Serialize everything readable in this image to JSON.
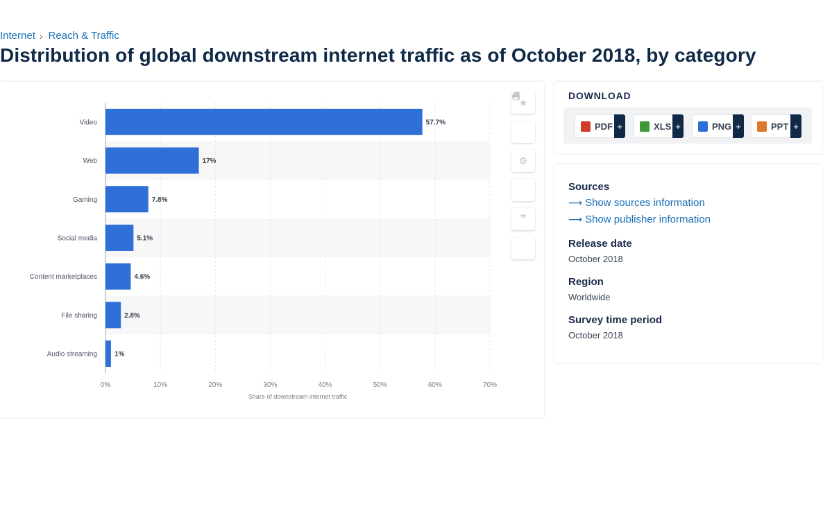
{
  "breadcrumb": {
    "items": [
      "Internet",
      "Reach & Traffic"
    ]
  },
  "page": {
    "title": "Distribution of global downstream internet traffic as of October 2018, by category"
  },
  "chart_data": {
    "type": "bar",
    "orientation": "horizontal",
    "categories": [
      "Video",
      "Web",
      "Gaming",
      "Social media",
      "Content marketplaces",
      "File sharing",
      "Audio streaming"
    ],
    "values": [
      57.7,
      17,
      7.8,
      5.1,
      4.6,
      2.8,
      1
    ],
    "value_labels": [
      "57.7%",
      "17%",
      "7.8%",
      "5.1%",
      "4.6%",
      "2.8%",
      "1%"
    ],
    "xlabel": "Share of downstream internet traffic",
    "ylabel": "",
    "xlim": [
      0,
      70
    ],
    "ticks": [
      "0%",
      "10%",
      "20%",
      "30%",
      "40%",
      "50%",
      "60%",
      "70%"
    ],
    "bar_color": "#2f70d8",
    "grid": true
  },
  "tools": [
    {
      "name": "favorite",
      "icon": "star-icon",
      "glyph": "★"
    },
    {
      "name": "notification",
      "icon": "bell-icon",
      "glyph": "🔔"
    },
    {
      "name": "settings",
      "icon": "gear-icon",
      "glyph": "⚙"
    },
    {
      "name": "share",
      "icon": "share-icon",
      "glyph": "⋖"
    },
    {
      "name": "cite",
      "icon": "quote-icon",
      "glyph": "❞"
    },
    {
      "name": "print",
      "icon": "print-icon",
      "glyph": "⎙"
    }
  ],
  "download": {
    "title": "DOWNLOAD",
    "formats": [
      {
        "label": "PDF",
        "plus": "+",
        "color": "#d33a2c"
      },
      {
        "label": "XLS",
        "plus": "+",
        "color": "#3d9a3a"
      },
      {
        "label": "PNG",
        "plus": "+",
        "color": "#2f70d8"
      },
      {
        "label": "PPT",
        "plus": "+",
        "color": "#e0782c"
      }
    ]
  },
  "info": {
    "sources_title": "Sources",
    "show_sources": "Show sources information",
    "show_publisher": "Show publisher information",
    "release_date_title": "Release date",
    "release_date": "October 2018",
    "region_title": "Region",
    "region": "Worldwide",
    "survey_period_title": "Survey time period",
    "survey_period": "October 2018"
  }
}
